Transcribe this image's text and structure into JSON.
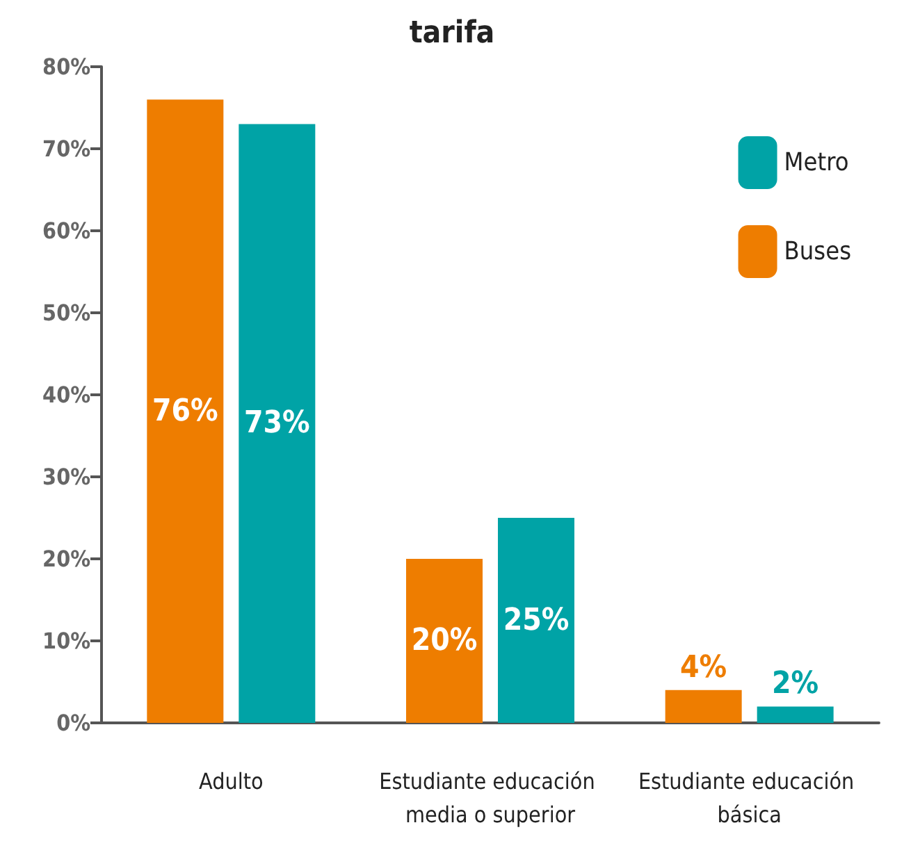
{
  "chart_data": {
    "type": "bar",
    "title": "tarifa",
    "categories": [
      "Adulto",
      "Estudiante educación media o superior",
      "Estudiante educación básica"
    ],
    "series": [
      {
        "name": "Buses",
        "color": "#ee7d00",
        "values": [
          76,
          20,
          4
        ],
        "value_labels": [
          "76%",
          "20%",
          "4%"
        ]
      },
      {
        "name": "Metro",
        "color": "#00a3a6",
        "values": [
          73,
          25,
          2
        ],
        "value_labels": [
          "73%",
          "25%",
          "2%"
        ]
      }
    ],
    "ylim": [
      0,
      80
    ],
    "yticks": [
      {
        "value": 0,
        "label": "0%"
      },
      {
        "value": 10,
        "label": "10%"
      },
      {
        "value": 20,
        "label": "20%"
      },
      {
        "value": 30,
        "label": "30%"
      },
      {
        "value": 40,
        "label": "40%"
      },
      {
        "value": 50,
        "label": "50%"
      },
      {
        "value": 60,
        "label": "60%"
      },
      {
        "value": 70,
        "label": "70%"
      },
      {
        "value": 80,
        "label": "80%"
      }
    ],
    "grid": false,
    "legend": "top right"
  }
}
